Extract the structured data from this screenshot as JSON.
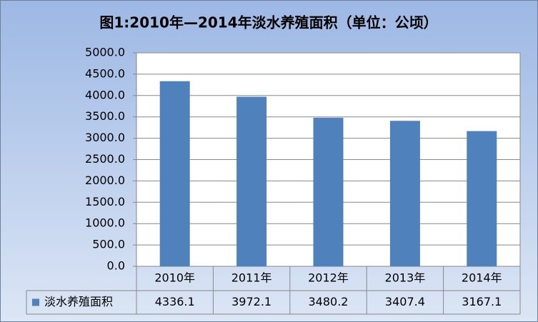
{
  "chart_data": {
    "type": "bar",
    "title": "图1:2010年—2014年淡水养殖面积（单位：公顷）",
    "categories": [
      "2010年",
      "2011年",
      "2012年",
      "2013年",
      "2014年"
    ],
    "series": [
      {
        "name": "淡水养殖面积",
        "color": "#4f81bd",
        "values": [
          4336.1,
          3972.1,
          3480.2,
          3407.4,
          3167.1
        ]
      }
    ],
    "ylim": [
      0,
      5000
    ],
    "yticks": [
      {
        "value": 0,
        "label": "0.0"
      },
      {
        "value": 500,
        "label": "500.0"
      },
      {
        "value": 1000,
        "label": "1000.0"
      },
      {
        "value": 1500,
        "label": "1500.0"
      },
      {
        "value": 2000,
        "label": "2000.0"
      },
      {
        "value": 2500,
        "label": "2500.0"
      },
      {
        "value": 3000,
        "label": "3000.0"
      },
      {
        "value": 3500,
        "label": "3500.0"
      },
      {
        "value": 4000,
        "label": "4000.0"
      },
      {
        "value": 4500,
        "label": "4500.0"
      },
      {
        "value": 5000,
        "label": "5000.0"
      }
    ],
    "grid": true,
    "data_table": true
  }
}
